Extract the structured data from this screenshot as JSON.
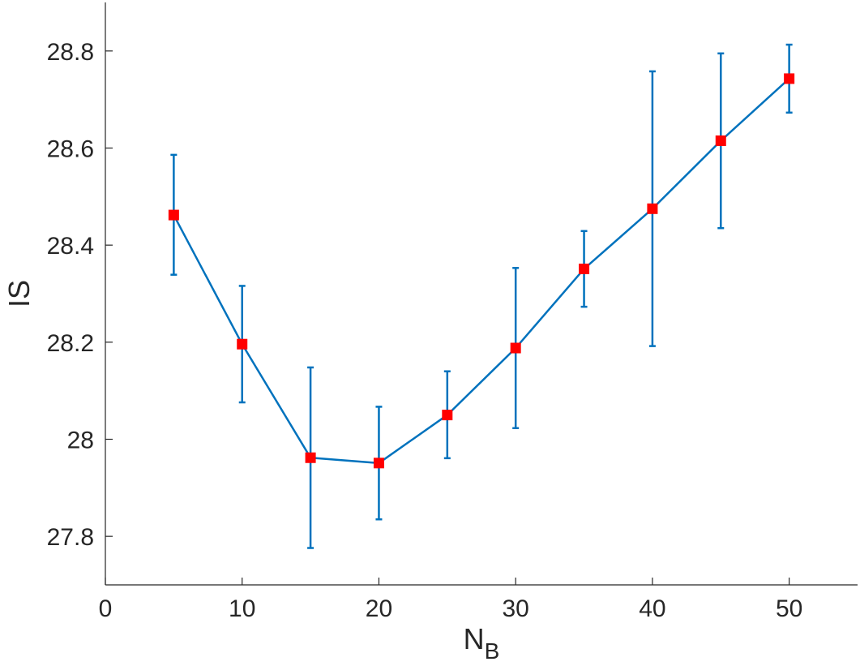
{
  "chart_data": {
    "type": "line",
    "title": "",
    "xlabel": "N",
    "xlabel_subscript": "B",
    "ylabel": "IS",
    "xlim": [
      0,
      55
    ],
    "ylim": [
      27.7,
      28.9
    ],
    "xticks": [
      0,
      10,
      20,
      30,
      40,
      50
    ],
    "yticks": [
      27.8,
      28.0,
      28.2,
      28.4,
      28.6,
      28.8
    ],
    "xtick_labels": [
      "0",
      "10",
      "20",
      "30",
      "40",
      "50"
    ],
    "ytick_labels": [
      "27.8",
      "28",
      "28.2",
      "28.4",
      "28.6",
      "28.8"
    ],
    "grid": false,
    "series": [
      {
        "x": [
          5,
          10,
          15,
          20,
          25,
          30,
          35,
          40,
          45,
          50
        ],
        "y": [
          28.462,
          28.196,
          27.962,
          27.951,
          28.05,
          28.188,
          28.351,
          28.475,
          28.615,
          28.743
        ],
        "err_low": [
          28.339,
          28.076,
          27.776,
          27.835,
          27.961,
          28.023,
          28.273,
          28.192,
          28.435,
          28.673
        ],
        "err_high": [
          28.586,
          28.316,
          28.148,
          28.067,
          28.14,
          28.353,
          28.429,
          28.758,
          28.795,
          28.813
        ],
        "line_color": "#0072BD",
        "marker_color": "#FF0000",
        "marker": "square"
      }
    ]
  }
}
